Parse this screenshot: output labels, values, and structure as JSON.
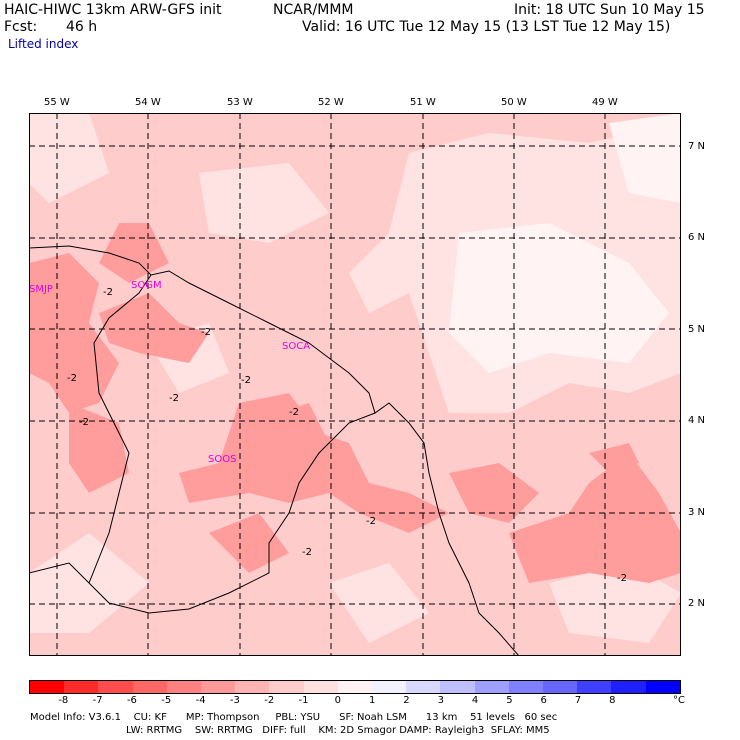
{
  "header": {
    "model": "HAIC-HIWC 13km ARW-GFS init",
    "org": "NCAR/MMM",
    "init": "Init: 18 UTC Sun 10 May 15",
    "fcst_label": "Fcst:",
    "fcst_value": "46 h",
    "valid": "Valid: 16 UTC Tue 12 May 15 (13 LST Tue 12 May 15)",
    "field": "Lifted index"
  },
  "map": {
    "lon_labels": [
      "55 W",
      "54 W",
      "53 W",
      "52 W",
      "51 W",
      "50 W",
      "49 W"
    ],
    "lat_labels": [
      "7 N",
      "6 N",
      "5 N",
      "4 N",
      "3 N",
      "2 N"
    ],
    "stations": [
      "SMJP",
      "SOGM",
      "SOCA",
      "SOOS"
    ],
    "contour_labels": [
      "-2",
      "-2",
      "-2",
      "-2",
      "-2",
      "-2",
      "-2",
      "-2",
      "-2",
      "-2"
    ]
  },
  "colorbar": {
    "colors": [
      "#ff0000",
      "#ff2a2a",
      "#ff4c4c",
      "#ff6666",
      "#ff8080",
      "#ff9999",
      "#ffb3b3",
      "#ffcccc",
      "#ffe0e0",
      "#fff2f2",
      "#f2f2ff",
      "#d9d9ff",
      "#bfbfff",
      "#9f9fff",
      "#8080ff",
      "#6666ff",
      "#3f3fff",
      "#2020ff",
      "#0000ff"
    ],
    "ticks": [
      "-8",
      "-7",
      "-6",
      "-5",
      "-4",
      "-3",
      "-2",
      "-1",
      "0",
      "1",
      "2",
      "3",
      "4",
      "5",
      "6",
      "7",
      "8"
    ],
    "unit": "°C"
  },
  "footer": {
    "line1": "Model Info: V3.6.1    CU: KF      MP: Thompson     PBL: YSU      SF: Noah LSM      13 km    51 levels   60 sec",
    "line2": "LW: RRTMG    SW: RRTMG   DIFF: full    KM: 2D Smagor DAMP: Rayleigh3  SFLAY: MM5"
  }
}
